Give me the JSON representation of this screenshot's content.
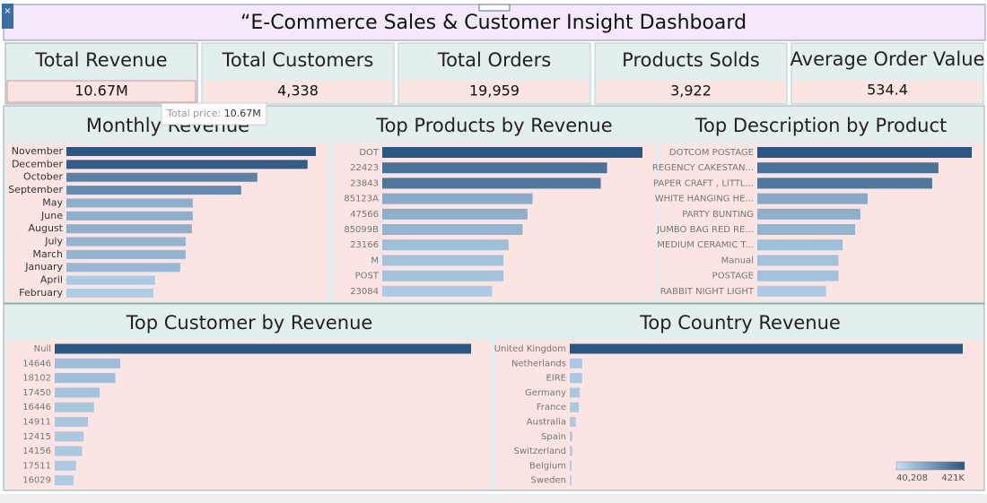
{
  "title": "“E-Commerce Sales & Customer Insight Dashboard",
  "kpis": [
    {
      "label": "Total Revenue",
      "value": "10.67M"
    },
    {
      "label": "Total Customers",
      "value": "4,338"
    },
    {
      "label": "Total Orders",
      "value": "19,959"
    },
    {
      "label": "Products Solds",
      "value": "3,922"
    },
    {
      "label": "Average Order Value",
      "value": "534.4"
    }
  ],
  "tooltip": {
    "label": "Total price:",
    "value": "10.67M"
  },
  "color_range": [
    "#c4e0f5",
    "#2a5783"
  ],
  "color_legend": {
    "min_label": "40,208",
    "max_label": "421K"
  },
  "chart_data": [
    {
      "type": "bar",
      "title": "Monthly Revenue",
      "categories": [
        "November",
        "December",
        "October",
        "September",
        "May",
        "June",
        "August",
        "July",
        "March",
        "January",
        "April",
        "February"
      ],
      "values": [
        1510000,
        1460000,
        1156000,
        1058000,
        765000,
        765000,
        760000,
        722000,
        722000,
        689000,
        537000,
        526000
      ]
    },
    {
      "type": "bar",
      "title": "Top Products by Revenue",
      "categories": [
        "DOT",
        "22423",
        "23843",
        "85123A",
        "47566",
        "85099B",
        "23166",
        "M",
        "POST",
        "23084"
      ],
      "values": [
        206000,
        178000,
        173000,
        119000,
        115000,
        111000,
        100000,
        96000,
        96000,
        87000
      ]
    },
    {
      "type": "bar",
      "title": "Top Description by Product",
      "categories": [
        "DOTCOM POSTAGE",
        "REGENCY CAKESTAN...",
        "PAPER CRAFT , LITTL...",
        "WHITE HANGING HE...",
        "PARTY BUNTING",
        "JUMBO BAG RED RE...",
        "MEDIUM CERAMIC T...",
        "Manual",
        "POSTAGE",
        "RABBIT NIGHT LIGHT"
      ],
      "values": [
        206000,
        174000,
        168000,
        106000,
        99000,
        94000,
        82000,
        78000,
        78000,
        66000
      ]
    },
    {
      "type": "bar",
      "title": "Top Customer by Revenue",
      "categories": [
        "Null",
        "14646",
        "18102",
        "17450",
        "16446",
        "14911",
        "12415",
        "14156",
        "17511",
        "16029"
      ],
      "values": [
        1780000,
        280000,
        259000,
        192000,
        168000,
        142000,
        124000,
        117000,
        91000,
        81000
      ]
    },
    {
      "type": "bar",
      "title": "Top Country Revenue",
      "categories": [
        "United Kingdom",
        "Netherlands",
        "EIRE",
        "Germany",
        "France",
        "Australia",
        "Spain",
        "Switzerland",
        "Belgium",
        "Sweden"
      ],
      "values": [
        9000000,
        285000,
        283000,
        229000,
        209000,
        138000,
        61000,
        57000,
        41000,
        38000
      ]
    }
  ]
}
